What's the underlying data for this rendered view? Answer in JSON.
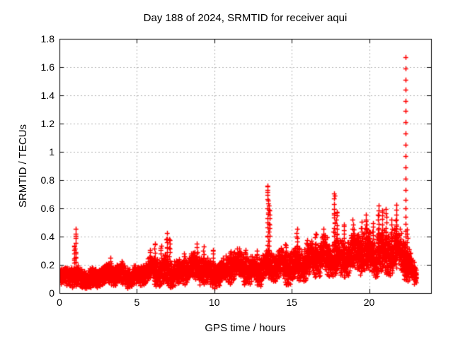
{
  "chart": {
    "title": "Day 188 of 2024, SRMTID for receiver aqui",
    "xlabel": "GPS time / hours",
    "ylabel": "SRMTID / TECUs"
  },
  "chart_data": {
    "type": "scatter",
    "title": "Day 188 of 2024, SRMTID for receiver aqui",
    "xlabel": "GPS time / hours",
    "ylabel": "SRMTID / TECUs",
    "xlim": [
      0,
      24
    ],
    "ylim": [
      0,
      1.8
    ],
    "xticks": [
      0,
      5,
      10,
      15,
      20
    ],
    "yticks": [
      0,
      0.2,
      0.4,
      0.6,
      0.8,
      1,
      1.2,
      1.4,
      1.6,
      1.8
    ],
    "grid": true,
    "grid_color": "#b0b0b0",
    "marker": "plus",
    "marker_color": "#ff0000",
    "axis_color": "#000000",
    "series_name": "SRMTID",
    "data_end_hour": 23.05,
    "sample_step_hours": 0.008333,
    "points_per_sample": 2,
    "seed": 188,
    "baseline_envelope": [
      [
        0.0,
        0.1,
        0.045
      ],
      [
        0.8,
        0.12,
        0.055
      ],
      [
        1.5,
        0.11,
        0.05
      ],
      [
        2.2,
        0.1,
        0.05
      ],
      [
        3.0,
        0.12,
        0.05
      ],
      [
        4.0,
        0.14,
        0.055
      ],
      [
        5.0,
        0.12,
        0.05
      ],
      [
        5.9,
        0.15,
        0.07
      ],
      [
        7.0,
        0.17,
        0.08
      ],
      [
        7.8,
        0.14,
        0.06
      ],
      [
        8.3,
        0.16,
        0.07
      ],
      [
        9.0,
        0.18,
        0.075
      ],
      [
        9.7,
        0.15,
        0.065
      ],
      [
        10.3,
        0.14,
        0.06
      ],
      [
        11.0,
        0.17,
        0.07
      ],
      [
        11.9,
        0.19,
        0.08
      ],
      [
        12.6,
        0.17,
        0.075
      ],
      [
        13.3,
        0.18,
        0.075
      ],
      [
        14.0,
        0.18,
        0.08
      ],
      [
        14.8,
        0.2,
        0.085
      ],
      [
        15.5,
        0.21,
        0.09
      ],
      [
        16.2,
        0.22,
        0.09
      ],
      [
        17.0,
        0.24,
        0.095
      ],
      [
        17.8,
        0.27,
        0.1
      ],
      [
        18.5,
        0.26,
        0.1
      ],
      [
        19.2,
        0.27,
        0.105
      ],
      [
        20.0,
        0.28,
        0.11
      ],
      [
        20.8,
        0.3,
        0.115
      ],
      [
        21.5,
        0.3,
        0.115
      ],
      [
        22.0,
        0.27,
        0.11
      ],
      [
        22.5,
        0.2,
        0.09
      ],
      [
        22.8,
        0.15,
        0.06
      ],
      [
        23.05,
        0.12,
        0.05
      ]
    ],
    "spikes": [
      [
        0.95,
        0.34
      ],
      [
        1.05,
        0.45
      ],
      [
        3.3,
        0.25
      ],
      [
        5.85,
        0.31
      ],
      [
        6.15,
        0.35
      ],
      [
        6.55,
        0.33
      ],
      [
        6.95,
        0.42
      ],
      [
        7.1,
        0.38
      ],
      [
        8.05,
        0.28
      ],
      [
        8.9,
        0.35
      ],
      [
        9.3,
        0.33
      ],
      [
        9.95,
        0.3
      ],
      [
        11.05,
        0.3
      ],
      [
        12.0,
        0.31
      ],
      [
        12.75,
        0.3
      ],
      [
        13.45,
        0.76
      ],
      [
        13.55,
        0.62
      ],
      [
        14.6,
        0.35
      ],
      [
        15.35,
        0.46
      ],
      [
        16.0,
        0.38
      ],
      [
        16.55,
        0.42
      ],
      [
        17.05,
        0.45
      ],
      [
        17.75,
        0.7
      ],
      [
        17.9,
        0.58
      ],
      [
        18.4,
        0.48
      ],
      [
        18.95,
        0.52
      ],
      [
        19.5,
        0.5
      ],
      [
        19.8,
        0.55
      ],
      [
        20.25,
        0.5
      ],
      [
        20.6,
        0.62
      ],
      [
        20.85,
        0.58
      ],
      [
        21.1,
        0.6
      ],
      [
        21.45,
        0.52
      ],
      [
        21.75,
        0.62
      ],
      [
        22.45,
        0.45
      ]
    ],
    "main_spike": {
      "x": 22.35,
      "y_values": [
        1.67,
        1.59,
        1.51,
        1.44,
        1.36,
        1.29,
        1.21,
        1.13,
        1.05,
        0.97,
        0.89,
        0.81,
        0.73,
        0.66,
        0.6,
        0.54,
        0.49,
        0.44,
        0.4,
        0.36,
        0.32,
        0.28,
        0.24,
        0.2,
        0.16,
        0.12
      ]
    }
  }
}
